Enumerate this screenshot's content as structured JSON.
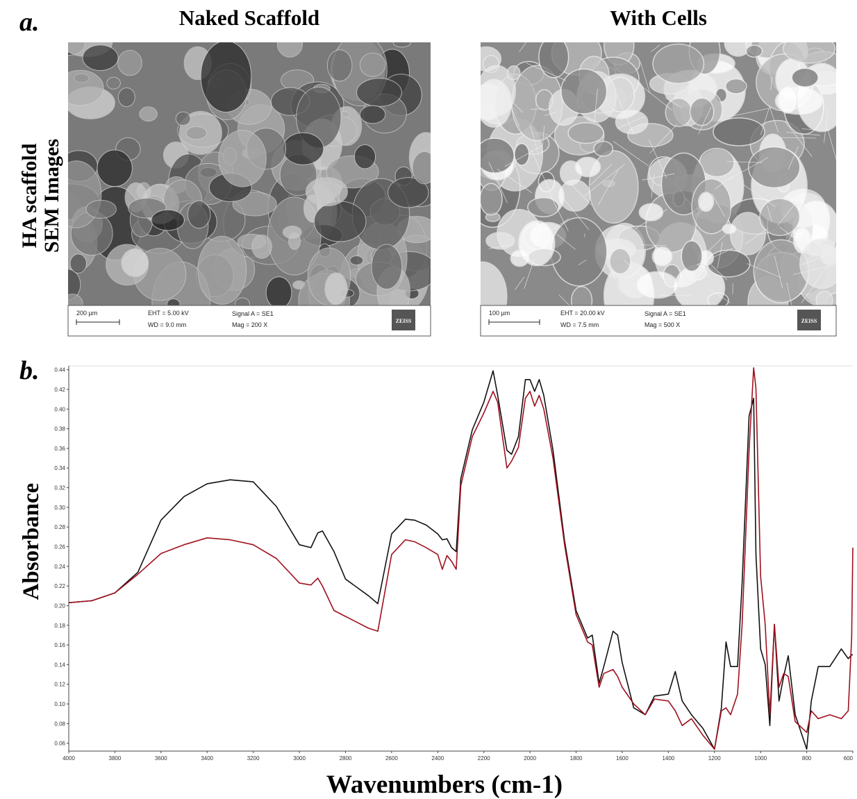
{
  "panel_a": {
    "panel_label": "a.",
    "row_label": [
      "HA scaffold",
      "SEM Images"
    ],
    "images": [
      {
        "title": "Naked Scaffold",
        "scale_bar": "200 µm",
        "eht": "EHT =  5.00 kV",
        "wd": "WD =  9.0 mm",
        "signal": "Signal A = SE1",
        "mag": "Mag =    200 X",
        "brand": "ZEISS"
      },
      {
        "title": "With Cells",
        "scale_bar": "100 µm",
        "eht": "EHT = 20.00 kV",
        "wd": "WD =  7.5 mm",
        "signal": "Signal A = SE1",
        "mag": "Mag =    500 X",
        "brand": "ZEISS"
      }
    ]
  },
  "chart_data": {
    "type": "line",
    "panel_label": "b.",
    "x_label": "Wavenumbers (cm-1)",
    "y_label": "Absorbance",
    "x": [
      4000,
      3900,
      3800,
      3700,
      3600,
      3500,
      3400,
      3300,
      3200,
      3100,
      3000,
      2950,
      2920,
      2900,
      2850,
      2800,
      2700,
      2660,
      2600,
      2540,
      2500,
      2450,
      2400,
      2380,
      2360,
      2340,
      2320,
      2300,
      2250,
      2200,
      2160,
      2140,
      2100,
      2080,
      2050,
      2020,
      2000,
      1980,
      1960,
      1940,
      1900,
      1850,
      1800,
      1750,
      1730,
      1700,
      1680,
      1640,
      1620,
      1600,
      1550,
      1500,
      1460,
      1400,
      1370,
      1340,
      1300,
      1250,
      1200,
      1170,
      1150,
      1130,
      1100,
      1080,
      1050,
      1030,
      1020,
      1000,
      980,
      960,
      940,
      920,
      900,
      880,
      850,
      800,
      780,
      750,
      700,
      650,
      620,
      605,
      600
    ],
    "series": [
      {
        "color": "#111111",
        "values": [
          0.203,
          0.205,
          0.213,
          0.234,
          0.287,
          0.311,
          0.324,
          0.328,
          0.326,
          0.301,
          0.262,
          0.259,
          0.274,
          0.276,
          0.255,
          0.227,
          0.21,
          0.202,
          0.273,
          0.288,
          0.287,
          0.282,
          0.273,
          0.267,
          0.268,
          0.259,
          0.255,
          0.329,
          0.379,
          0.407,
          0.439,
          0.414,
          0.358,
          0.354,
          0.372,
          0.43,
          0.43,
          0.418,
          0.43,
          0.414,
          0.358,
          0.266,
          0.195,
          0.167,
          0.17,
          0.121,
          0.138,
          0.174,
          0.17,
          0.142,
          0.096,
          0.089,
          0.108,
          0.11,
          0.133,
          0.103,
          0.089,
          0.075,
          0.054,
          0.096,
          0.163,
          0.138,
          0.138,
          0.223,
          0.393,
          0.411,
          0.252,
          0.156,
          0.14,
          0.078,
          0.181,
          0.103,
          0.128,
          0.149,
          0.089,
          0.054,
          0.103,
          0.138,
          0.138,
          0.156,
          0.146,
          0.15,
          0.15
        ]
      },
      {
        "color": "#a0101e",
        "values": [
          0.203,
          0.205,
          0.213,
          0.232,
          0.253,
          0.262,
          0.269,
          0.267,
          0.262,
          0.248,
          0.223,
          0.221,
          0.228,
          0.22,
          0.195,
          0.189,
          0.177,
          0.174,
          0.252,
          0.267,
          0.265,
          0.259,
          0.252,
          0.237,
          0.251,
          0.245,
          0.237,
          0.322,
          0.372,
          0.396,
          0.418,
          0.407,
          0.34,
          0.347,
          0.361,
          0.411,
          0.418,
          0.403,
          0.414,
          0.4,
          0.35,
          0.262,
          0.191,
          0.163,
          0.16,
          0.117,
          0.131,
          0.135,
          0.128,
          0.117,
          0.1,
          0.089,
          0.105,
          0.103,
          0.093,
          0.078,
          0.085,
          0.068,
          0.054,
          0.093,
          0.096,
          0.089,
          0.11,
          0.181,
          0.358,
          0.442,
          0.421,
          0.23,
          0.181,
          0.089,
          0.181,
          0.117,
          0.131,
          0.128,
          0.082,
          0.071,
          0.093,
          0.085,
          0.089,
          0.085,
          0.093,
          0.167,
          0.259
        ]
      }
    ],
    "xlim": [
      4000,
      600
    ],
    "xticks": [
      4000,
      3800,
      3600,
      3400,
      3200,
      3000,
      2800,
      2600,
      2400,
      2200,
      2000,
      1800,
      1600,
      1400,
      1200,
      1000,
      800,
      600
    ],
    "ylim": [
      0.052,
      0.444
    ],
    "yticks": [
      0.06,
      0.08,
      {
        "value": 0.1,
        "label": "0.10"
      },
      0.12,
      0.14,
      0.16,
      0.18,
      {
        "value": 0.2,
        "label": "0.20"
      },
      0.22,
      0.24,
      0.26,
      0.28,
      {
        "value": 0.3,
        "label": "0.30"
      },
      0.32,
      0.34,
      0.36,
      0.38,
      {
        "value": 0.4,
        "label": "0.40"
      },
      0.42,
      0.44
    ]
  }
}
